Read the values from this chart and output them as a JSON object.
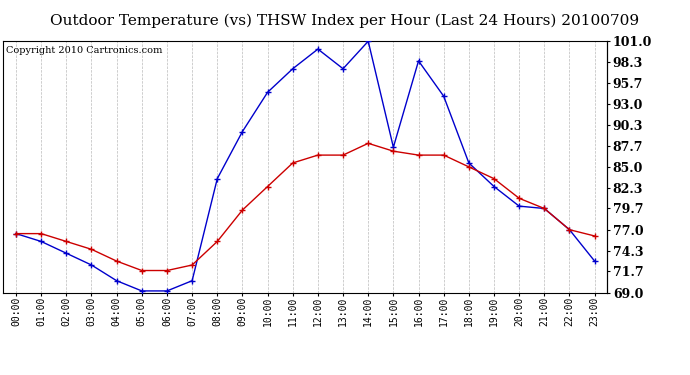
{
  "title": "Outdoor Temperature (vs) THSW Index per Hour (Last 24 Hours) 20100709",
  "copyright": "Copyright 2010 Cartronics.com",
  "hours": [
    "00:00",
    "01:00",
    "02:00",
    "03:00",
    "04:00",
    "05:00",
    "06:00",
    "07:00",
    "08:00",
    "09:00",
    "10:00",
    "11:00",
    "12:00",
    "13:00",
    "14:00",
    "15:00",
    "16:00",
    "17:00",
    "18:00",
    "19:00",
    "20:00",
    "21:00",
    "22:00",
    "23:00"
  ],
  "temp_red": [
    76.5,
    76.5,
    75.5,
    74.5,
    73.0,
    71.8,
    71.8,
    72.5,
    75.5,
    79.5,
    82.5,
    85.5,
    86.5,
    86.5,
    88.0,
    87.0,
    86.5,
    86.5,
    85.0,
    83.5,
    81.0,
    79.7,
    77.0,
    76.2
  ],
  "thsw_blue": [
    76.5,
    75.5,
    74.0,
    72.5,
    70.5,
    69.2,
    69.2,
    70.5,
    83.5,
    89.5,
    94.5,
    97.5,
    100.0,
    97.5,
    101.0,
    87.5,
    98.5,
    94.0,
    85.5,
    82.5,
    80.0,
    79.7,
    77.0,
    73.0
  ],
  "ylim_min": 69.0,
  "ylim_max": 101.0,
  "yticks": [
    69.0,
    71.7,
    74.3,
    77.0,
    79.7,
    82.3,
    85.0,
    87.7,
    90.3,
    93.0,
    95.7,
    98.3,
    101.0
  ],
  "red_color": "#cc0000",
  "blue_color": "#0000cc",
  "grid_color": "#aaaaaa",
  "bg_color": "#ffffff",
  "title_fontsize": 11,
  "copyright_fontsize": 7
}
